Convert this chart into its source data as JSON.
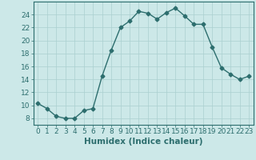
{
  "x": [
    0,
    1,
    2,
    3,
    4,
    5,
    6,
    7,
    8,
    9,
    10,
    11,
    12,
    13,
    14,
    15,
    16,
    17,
    18,
    19,
    20,
    21,
    22,
    23
  ],
  "y": [
    10.3,
    9.5,
    8.3,
    8.0,
    8.0,
    9.2,
    9.5,
    14.5,
    18.5,
    22.0,
    23.0,
    24.5,
    24.2,
    23.3,
    24.3,
    25.0,
    23.8,
    22.5,
    22.5,
    19.0,
    15.8,
    14.8,
    14.0,
    14.5
  ],
  "line_color": "#2d6e6e",
  "marker": "D",
  "markersize": 2.5,
  "linewidth": 1.0,
  "bg_color": "#cce8e8",
  "grid_color": "#aacfcf",
  "xlabel": "Humidex (Indice chaleur)",
  "xlim": [
    -0.5,
    23.5
  ],
  "ylim": [
    7,
    26
  ],
  "yticks": [
    8,
    10,
    12,
    14,
    16,
    18,
    20,
    22,
    24
  ],
  "xticks": [
    0,
    1,
    2,
    3,
    4,
    5,
    6,
    7,
    8,
    9,
    10,
    11,
    12,
    13,
    14,
    15,
    16,
    17,
    18,
    19,
    20,
    21,
    22,
    23
  ],
  "tick_fontsize": 6.5,
  "xlabel_fontsize": 7.5
}
